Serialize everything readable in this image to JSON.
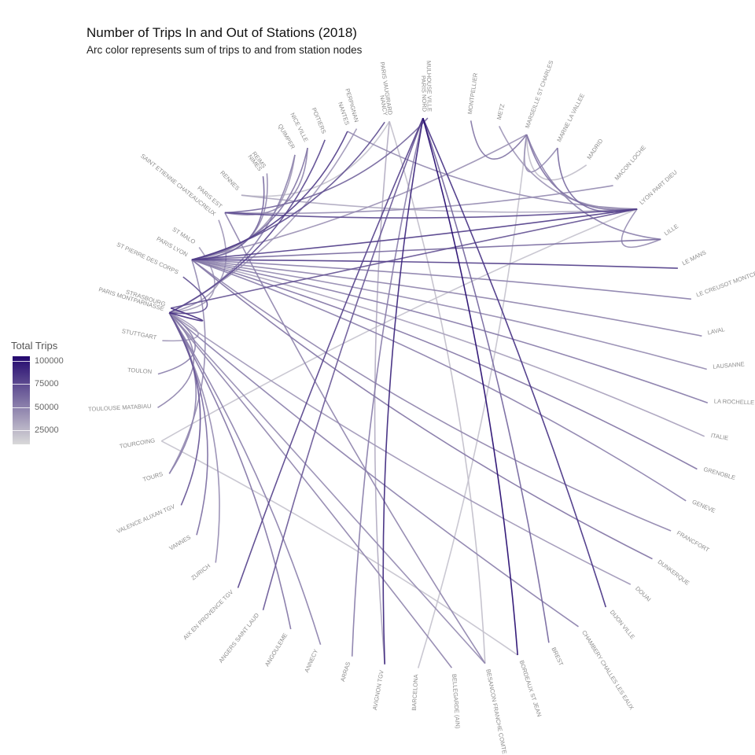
{
  "chart_data": {
    "type": "arc-diagram",
    "title": "Number of Trips In and Out of Stations (2018)",
    "subtitle": "Arc color represents sum of trips to and from station nodes",
    "legend": {
      "title": "Total Trips",
      "position": "left",
      "ticks": [
        100000,
        75000,
        50000,
        25000
      ],
      "tick_labels": [
        "100000",
        "75000",
        "50000",
        "25000"
      ],
      "range": [
        10000,
        105000
      ],
      "low_color": "#d9d9d9",
      "high_color": "#23086e"
    },
    "nodes": [
      {
        "id": "paris_montparnasse",
        "label": "PARIS MONTPARNASSE",
        "angle": 197
      },
      {
        "id": "paris_lyon",
        "label": "PARIS LYON",
        "angle": 209
      },
      {
        "id": "paris_est",
        "label": "PARIS EST",
        "angle": 221
      },
      {
        "id": "nimes",
        "label": "NIMES",
        "angle": 232
      },
      {
        "id": "nice_ville",
        "label": "NICE VILLE",
        "angle": 243
      },
      {
        "id": "nantes",
        "label": "NANTES",
        "angle": 252
      },
      {
        "id": "nancy",
        "label": "NANCY",
        "angle": 260
      },
      {
        "id": "mulhouse_ville",
        "label": "MULHOUSE VILLE",
        "angle": 269
      },
      {
        "id": "montpellier",
        "label": "MONTPELLIER",
        "angle": 278
      },
      {
        "id": "metz",
        "label": "METZ",
        "angle": 284
      },
      {
        "id": "marseille",
        "label": "MARSEILLE ST CHARLES",
        "angle": 290
      },
      {
        "id": "marne_la_vallee",
        "label": "MARNE LA VALLEE",
        "angle": 297
      },
      {
        "id": "madrid",
        "label": "MADRID",
        "angle": 304
      },
      {
        "id": "macon_loche",
        "label": "MACON LOCHE",
        "angle": 311
      },
      {
        "id": "lyon_part_dieu",
        "label": "LYON PART DIEU",
        "angle": 318
      },
      {
        "id": "lille",
        "label": "LILLE",
        "angle": 326
      },
      {
        "id": "le_mans",
        "label": "LE MANS",
        "angle": 333
      },
      {
        "id": "le_creusot",
        "label": "LE CREUSOT MONTCEAU MONTCHANIN",
        "angle": 340
      },
      {
        "id": "laval",
        "label": "LAVAL",
        "angle": 348
      },
      {
        "id": "lausanne",
        "label": "LAUSANNE",
        "angle": 355
      },
      {
        "id": "la_rochelle",
        "label": "LA ROCHELLE VILLE",
        "angle": 362
      },
      {
        "id": "italie",
        "label": "ITALIE",
        "angle": 369
      },
      {
        "id": "grenoble",
        "label": "GRENOBLE",
        "angle": 376
      },
      {
        "id": "geneve",
        "label": "GENEVE",
        "angle": 383
      },
      {
        "id": "francfort",
        "label": "FRANCFORT",
        "angle": 390
      },
      {
        "id": "dunkerque",
        "label": "DUNKERQUE",
        "angle": 397
      },
      {
        "id": "douai",
        "label": "DOUAI",
        "angle": 404
      },
      {
        "id": "dijon_ville",
        "label": "DIJON VILLE",
        "angle": 411
      },
      {
        "id": "chambery",
        "label": "CHAMBERY CHALLES LES EAUX",
        "angle": 418
      },
      {
        "id": "brest",
        "label": "BREST",
        "angle": 425
      },
      {
        "id": "bordeaux",
        "label": "BORDEAUX ST JEAN",
        "angle": 432
      },
      {
        "id": "besancon",
        "label": "BESANCON FRANCHE COMTE TGV",
        "angle": 439
      },
      {
        "id": "bellegarde",
        "label": "BELLEGARDE (AIN)",
        "angle": 446
      },
      {
        "id": "barcelona",
        "label": "BARCELONA",
        "angle": 453
      },
      {
        "id": "avignon",
        "label": "AVIGNON TGV",
        "angle": 460
      },
      {
        "id": "arras",
        "label": "ARRAS",
        "angle": 467
      },
      {
        "id": "annecy",
        "label": "ANNECY",
        "angle": 474
      },
      {
        "id": "angouleme",
        "label": "ANGOULEME",
        "angle": 481
      },
      {
        "id": "angers",
        "label": "ANGERS SAINT LAUD",
        "angle": 488
      },
      {
        "id": "aix",
        "label": "AIX EN PROVENCE TGV",
        "angle": 495
      },
      {
        "id": "zurich",
        "label": "ZURICH",
        "angle": 502
      },
      {
        "id": "vannes",
        "label": "VANNES",
        "angle": 509
      },
      {
        "id": "valence",
        "label": "VALENCE ALIXAN TGV",
        "angle": 516
      },
      {
        "id": "tours",
        "label": "TOURS",
        "angle": 523
      },
      {
        "id": "tourcoing",
        "label": "TOURCOING",
        "angle": 530
      },
      {
        "id": "toulouse",
        "label": "TOULOUSE MATABIAU",
        "angle": 537
      },
      {
        "id": "toulon",
        "label": "TOULON",
        "angle": 544
      },
      {
        "id": "stuttgart",
        "label": "STUTTGART",
        "angle": 551
      },
      {
        "id": "strasbourg",
        "label": "STRASBOURG",
        "angle": 558
      },
      {
        "id": "st_pierre",
        "label": "ST PIERRE DES CORPS",
        "angle": 565
      },
      {
        "id": "st_malo",
        "label": "ST MALO",
        "angle": 572
      },
      {
        "id": "st_etienne",
        "label": "SAINT ETIENNE CHATEAUCREUX",
        "angle": 579
      },
      {
        "id": "rennes",
        "label": "RENNES",
        "angle": 586
      },
      {
        "id": "reims",
        "label": "REIMS",
        "angle": 593
      },
      {
        "id": "quimper",
        "label": "QUIMPER",
        "angle": 600
      },
      {
        "id": "poitiers",
        "label": "POITIERS",
        "angle": 607
      },
      {
        "id": "perpignan",
        "label": "PERPIGNAN",
        "angle": 614
      },
      {
        "id": "paris_vaugirard",
        "label": "PARIS VAUGIRARD",
        "angle": 621
      },
      {
        "id": "paris_nord",
        "label": "PARIS NORD",
        "angle": 628
      }
    ],
    "links": [
      {
        "source": "paris_nord",
        "target": "dijon_ville",
        "trips": 85000
      },
      {
        "source": "paris_nord",
        "target": "bordeaux",
        "trips": 104000
      },
      {
        "source": "paris_nord",
        "target": "brest",
        "trips": 62000
      },
      {
        "source": "paris_nord",
        "target": "avignon",
        "trips": 92000
      },
      {
        "source": "paris_nord",
        "target": "aix",
        "trips": 78000
      },
      {
        "source": "paris_nord",
        "target": "angers",
        "trips": 68000
      },
      {
        "source": "paris_nord",
        "target": "arras",
        "trips": 52000
      },
      {
        "source": "paris_montparnasse",
        "target": "chambery",
        "trips": 50000
      },
      {
        "source": "paris_montparnasse",
        "target": "besancon",
        "trips": 45000
      },
      {
        "source": "paris_montparnasse",
        "target": "bellegarde",
        "trips": 48000
      },
      {
        "source": "paris_montparnasse",
        "target": "annecy",
        "trips": 50000
      },
      {
        "source": "paris_montparnasse",
        "target": "angouleme",
        "trips": 55000
      },
      {
        "source": "paris_montparnasse",
        "target": "zurich",
        "trips": 45000
      },
      {
        "source": "paris_montparnasse",
        "target": "vannes",
        "trips": 58000
      },
      {
        "source": "paris_montparnasse",
        "target": "valence",
        "trips": 70000
      },
      {
        "source": "paris_montparnasse",
        "target": "tours",
        "trips": 50000
      },
      {
        "source": "paris_montparnasse",
        "target": "toulouse",
        "trips": 48000
      },
      {
        "source": "paris_montparnasse",
        "target": "toulon",
        "trips": 50000
      },
      {
        "source": "paris_montparnasse",
        "target": "stuttgart",
        "trips": 40000
      },
      {
        "source": "paris_montparnasse",
        "target": "strasbourg",
        "trips": 88000
      },
      {
        "source": "paris_montparnasse",
        "target": "st_pierre",
        "trips": 72000
      },
      {
        "source": "paris_montparnasse",
        "target": "st_malo",
        "trips": 38000
      },
      {
        "source": "paris_montparnasse",
        "target": "st_etienne",
        "trips": 40000
      },
      {
        "source": "paris_montparnasse",
        "target": "quimper",
        "trips": 50000
      },
      {
        "source": "paris_montparnasse",
        "target": "poitiers",
        "trips": 75000
      },
      {
        "source": "paris_montparnasse",
        "target": "perpignan",
        "trips": 40000
      },
      {
        "source": "paris_montparnasse",
        "target": "douai",
        "trips": 40000
      },
      {
        "source": "paris_lyon",
        "target": "dunkerque",
        "trips": 55000
      },
      {
        "source": "paris_lyon",
        "target": "francfort",
        "trips": 48000
      },
      {
        "source": "paris_lyon",
        "target": "geneve",
        "trips": 50000
      },
      {
        "source": "paris_lyon",
        "target": "grenoble",
        "trips": 55000
      },
      {
        "source": "paris_lyon",
        "target": "italie",
        "trips": 35000
      },
      {
        "source": "paris_lyon",
        "target": "la_rochelle",
        "trips": 52000
      },
      {
        "source": "paris_lyon",
        "target": "lausanne",
        "trips": 45000
      },
      {
        "source": "paris_lyon",
        "target": "laval",
        "trips": 48000
      },
      {
        "source": "paris_lyon",
        "target": "le_creusot",
        "trips": 50000
      },
      {
        "source": "paris_lyon",
        "target": "le_mans",
        "trips": 80000
      },
      {
        "source": "paris_lyon",
        "target": "lille",
        "trips": 60000
      },
      {
        "source": "paris_lyon",
        "target": "marseille",
        "trips": 42000
      },
      {
        "source": "paris_lyon",
        "target": "reims",
        "trips": 45000
      },
      {
        "source": "paris_lyon",
        "target": "quimper",
        "trips": 38000
      },
      {
        "source": "paris_lyon",
        "target": "nimes",
        "trips": 62000
      },
      {
        "source": "paris_lyon",
        "target": "nice_ville",
        "trips": 55000
      },
      {
        "source": "paris_lyon",
        "target": "nantes",
        "trips": 80000
      },
      {
        "source": "paris_lyon",
        "target": "nancy",
        "trips": 72000
      },
      {
        "source": "paris_lyon",
        "target": "lyon_part_dieu",
        "trips": 80000
      },
      {
        "source": "paris_lyon",
        "target": "tours",
        "trips": 45000
      },
      {
        "source": "paris_est",
        "target": "lyon_part_dieu",
        "trips": 75000
      },
      {
        "source": "paris_est",
        "target": "macon_loche",
        "trips": 45000
      },
      {
        "source": "paris_est",
        "target": "mulhouse_ville",
        "trips": 62000
      },
      {
        "source": "paris_est",
        "target": "nice_ville",
        "trips": 48000
      },
      {
        "source": "paris_est",
        "target": "besancon",
        "trips": 48000
      },
      {
        "source": "paris_vaugirard",
        "target": "rennes",
        "trips": 20000
      },
      {
        "source": "paris_vaugirard",
        "target": "avignon",
        "trips": 30000
      },
      {
        "source": "paris_vaugirard",
        "target": "besancon",
        "trips": 22000
      },
      {
        "source": "rennes",
        "target": "lyon_part_dieu",
        "trips": 32000
      },
      {
        "source": "marseille",
        "target": "lyon_part_dieu",
        "trips": 55000
      },
      {
        "source": "marseille",
        "target": "lille",
        "trips": 50000
      },
      {
        "source": "marseille",
        "target": "montpellier",
        "trips": 55000
      },
      {
        "source": "marne_la_vallee",
        "target": "lyon_part_dieu",
        "trips": 60000
      },
      {
        "source": "madrid",
        "target": "marseille",
        "trips": 22000
      },
      {
        "source": "marne_la_vallee",
        "target": "marseille",
        "trips": 45000
      },
      {
        "source": "lyon_part_dieu",
        "target": "strasbourg",
        "trips": 70000
      },
      {
        "source": "lyon_part_dieu",
        "target": "tourcoing",
        "trips": 20000
      },
      {
        "source": "lyon_part_dieu",
        "target": "lille",
        "trips": 45000
      },
      {
        "source": "lyon_part_dieu",
        "target": "nantes",
        "trips": 45000
      },
      {
        "source": "tourcoing",
        "target": "bordeaux",
        "trips": 20000
      },
      {
        "source": "barcelona",
        "target": "marseille",
        "trips": 20000
      },
      {
        "source": "metz",
        "target": "lyon_part_dieu",
        "trips": 40000
      }
    ]
  }
}
